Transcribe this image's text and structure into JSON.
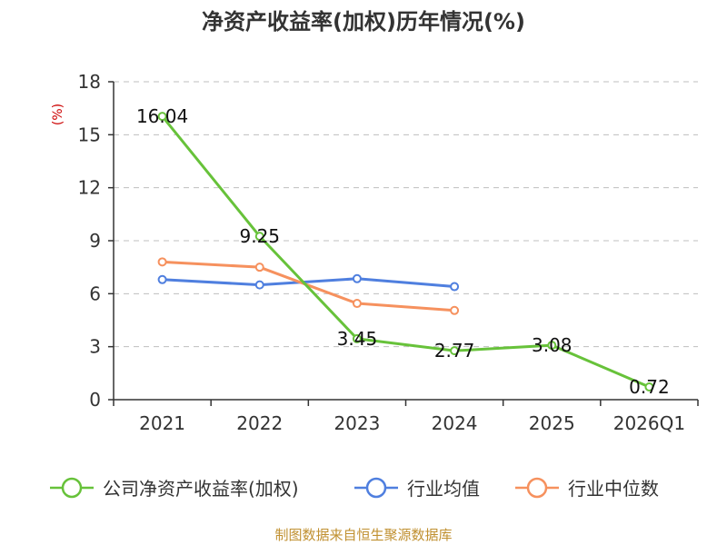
{
  "chart_data": {
    "type": "line",
    "title": "净资产收益率(加权)历年情况(%)",
    "ylabel": "(%)",
    "xlabel": "",
    "categories": [
      "2021",
      "2022",
      "2023",
      "2024",
      "2025",
      "2026Q1"
    ],
    "ylim": [
      0,
      18
    ],
    "yticks": [
      0,
      3,
      6,
      9,
      12,
      15,
      18
    ],
    "grid": true,
    "legend_position": "bottom",
    "series": [
      {
        "name": "公司净资产收益率(加权)",
        "color": "#67c23a",
        "values": [
          16.04,
          9.25,
          3.45,
          2.77,
          3.08,
          0.72
        ],
        "labels": [
          "16.04",
          "9.25",
          "3.45",
          "2.77",
          "3.08",
          "0.72"
        ]
      },
      {
        "name": "行业均值",
        "color": "#4f7fdf",
        "values": [
          6.8,
          6.5,
          6.85,
          6.4,
          null,
          null
        ]
      },
      {
        "name": "行业中位数",
        "color": "#f6915e",
        "values": [
          7.8,
          7.5,
          5.45,
          5.05,
          null,
          null
        ]
      }
    ]
  },
  "source": "制图数据来自恒生聚源数据库"
}
